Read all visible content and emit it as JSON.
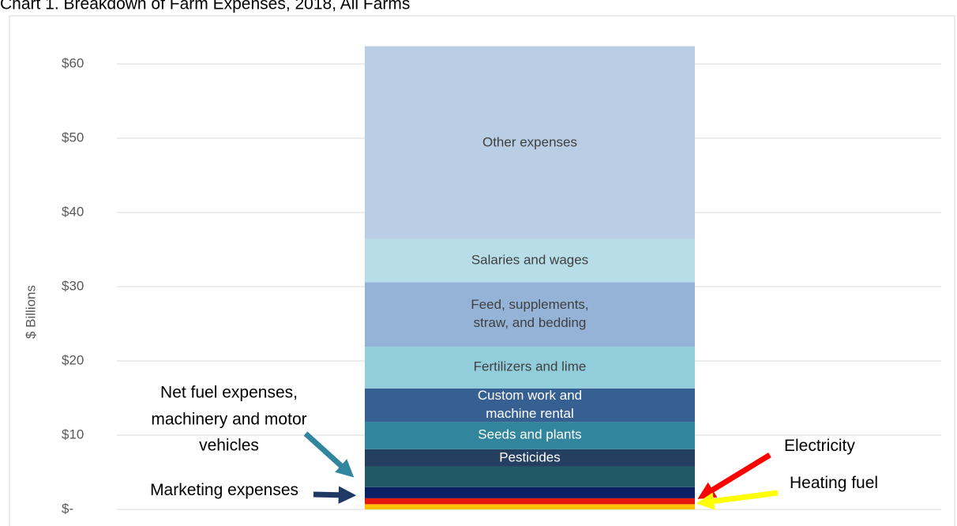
{
  "chart_data": {
    "type": "stacked-bar",
    "title": "Chart 1. Breakdown of Farm Expenses, 2018, All Farms",
    "y_label": "$ Billions",
    "ylim": [
      0,
      65
    ],
    "yticks": [
      {
        "value": 0,
        "label": "$-"
      },
      {
        "value": 10,
        "label": "$10"
      },
      {
        "value": 20,
        "label": "$20"
      },
      {
        "value": 30,
        "label": "$30"
      },
      {
        "value": 40,
        "label": "$40"
      },
      {
        "value": 50,
        "label": "$50"
      },
      {
        "value": 60,
        "label": "$60"
      }
    ],
    "grid": true,
    "series": [
      {
        "name": "Heating fuel",
        "color": "#ffc000",
        "values": [
          0.7
        ]
      },
      {
        "name": "Electricity",
        "color": "#e8170b",
        "values": [
          0.8
        ]
      },
      {
        "name": "Marketing expenses",
        "color": "#0b1f65",
        "values": [
          1.5
        ]
      },
      {
        "name": "Net fuel expenses, machinery and motor vehicles",
        "color": "#215968",
        "values": [
          2.8
        ]
      },
      {
        "name": "Pesticides",
        "color": "#243f60",
        "values": [
          2.3
        ]
      },
      {
        "name": "Seeds and plants",
        "color": "#31859c",
        "values": [
          3.7
        ]
      },
      {
        "name": "Custom work and machine rental",
        "color": "#376092",
        "values": [
          4.5
        ]
      },
      {
        "name": "Fertilizers and lime",
        "color": "#92cddc",
        "values": [
          5.6
        ]
      },
      {
        "name": "Feed, supplements, straw, and bedding",
        "color": "#95b3d7",
        "values": [
          8.7
        ]
      },
      {
        "name": "Salaries and wages",
        "color": "#b7dee8",
        "values": [
          5.8
        ]
      },
      {
        "name": "Other expenses",
        "color": "#b9cde5",
        "values": [
          26.0
        ]
      }
    ]
  }
}
